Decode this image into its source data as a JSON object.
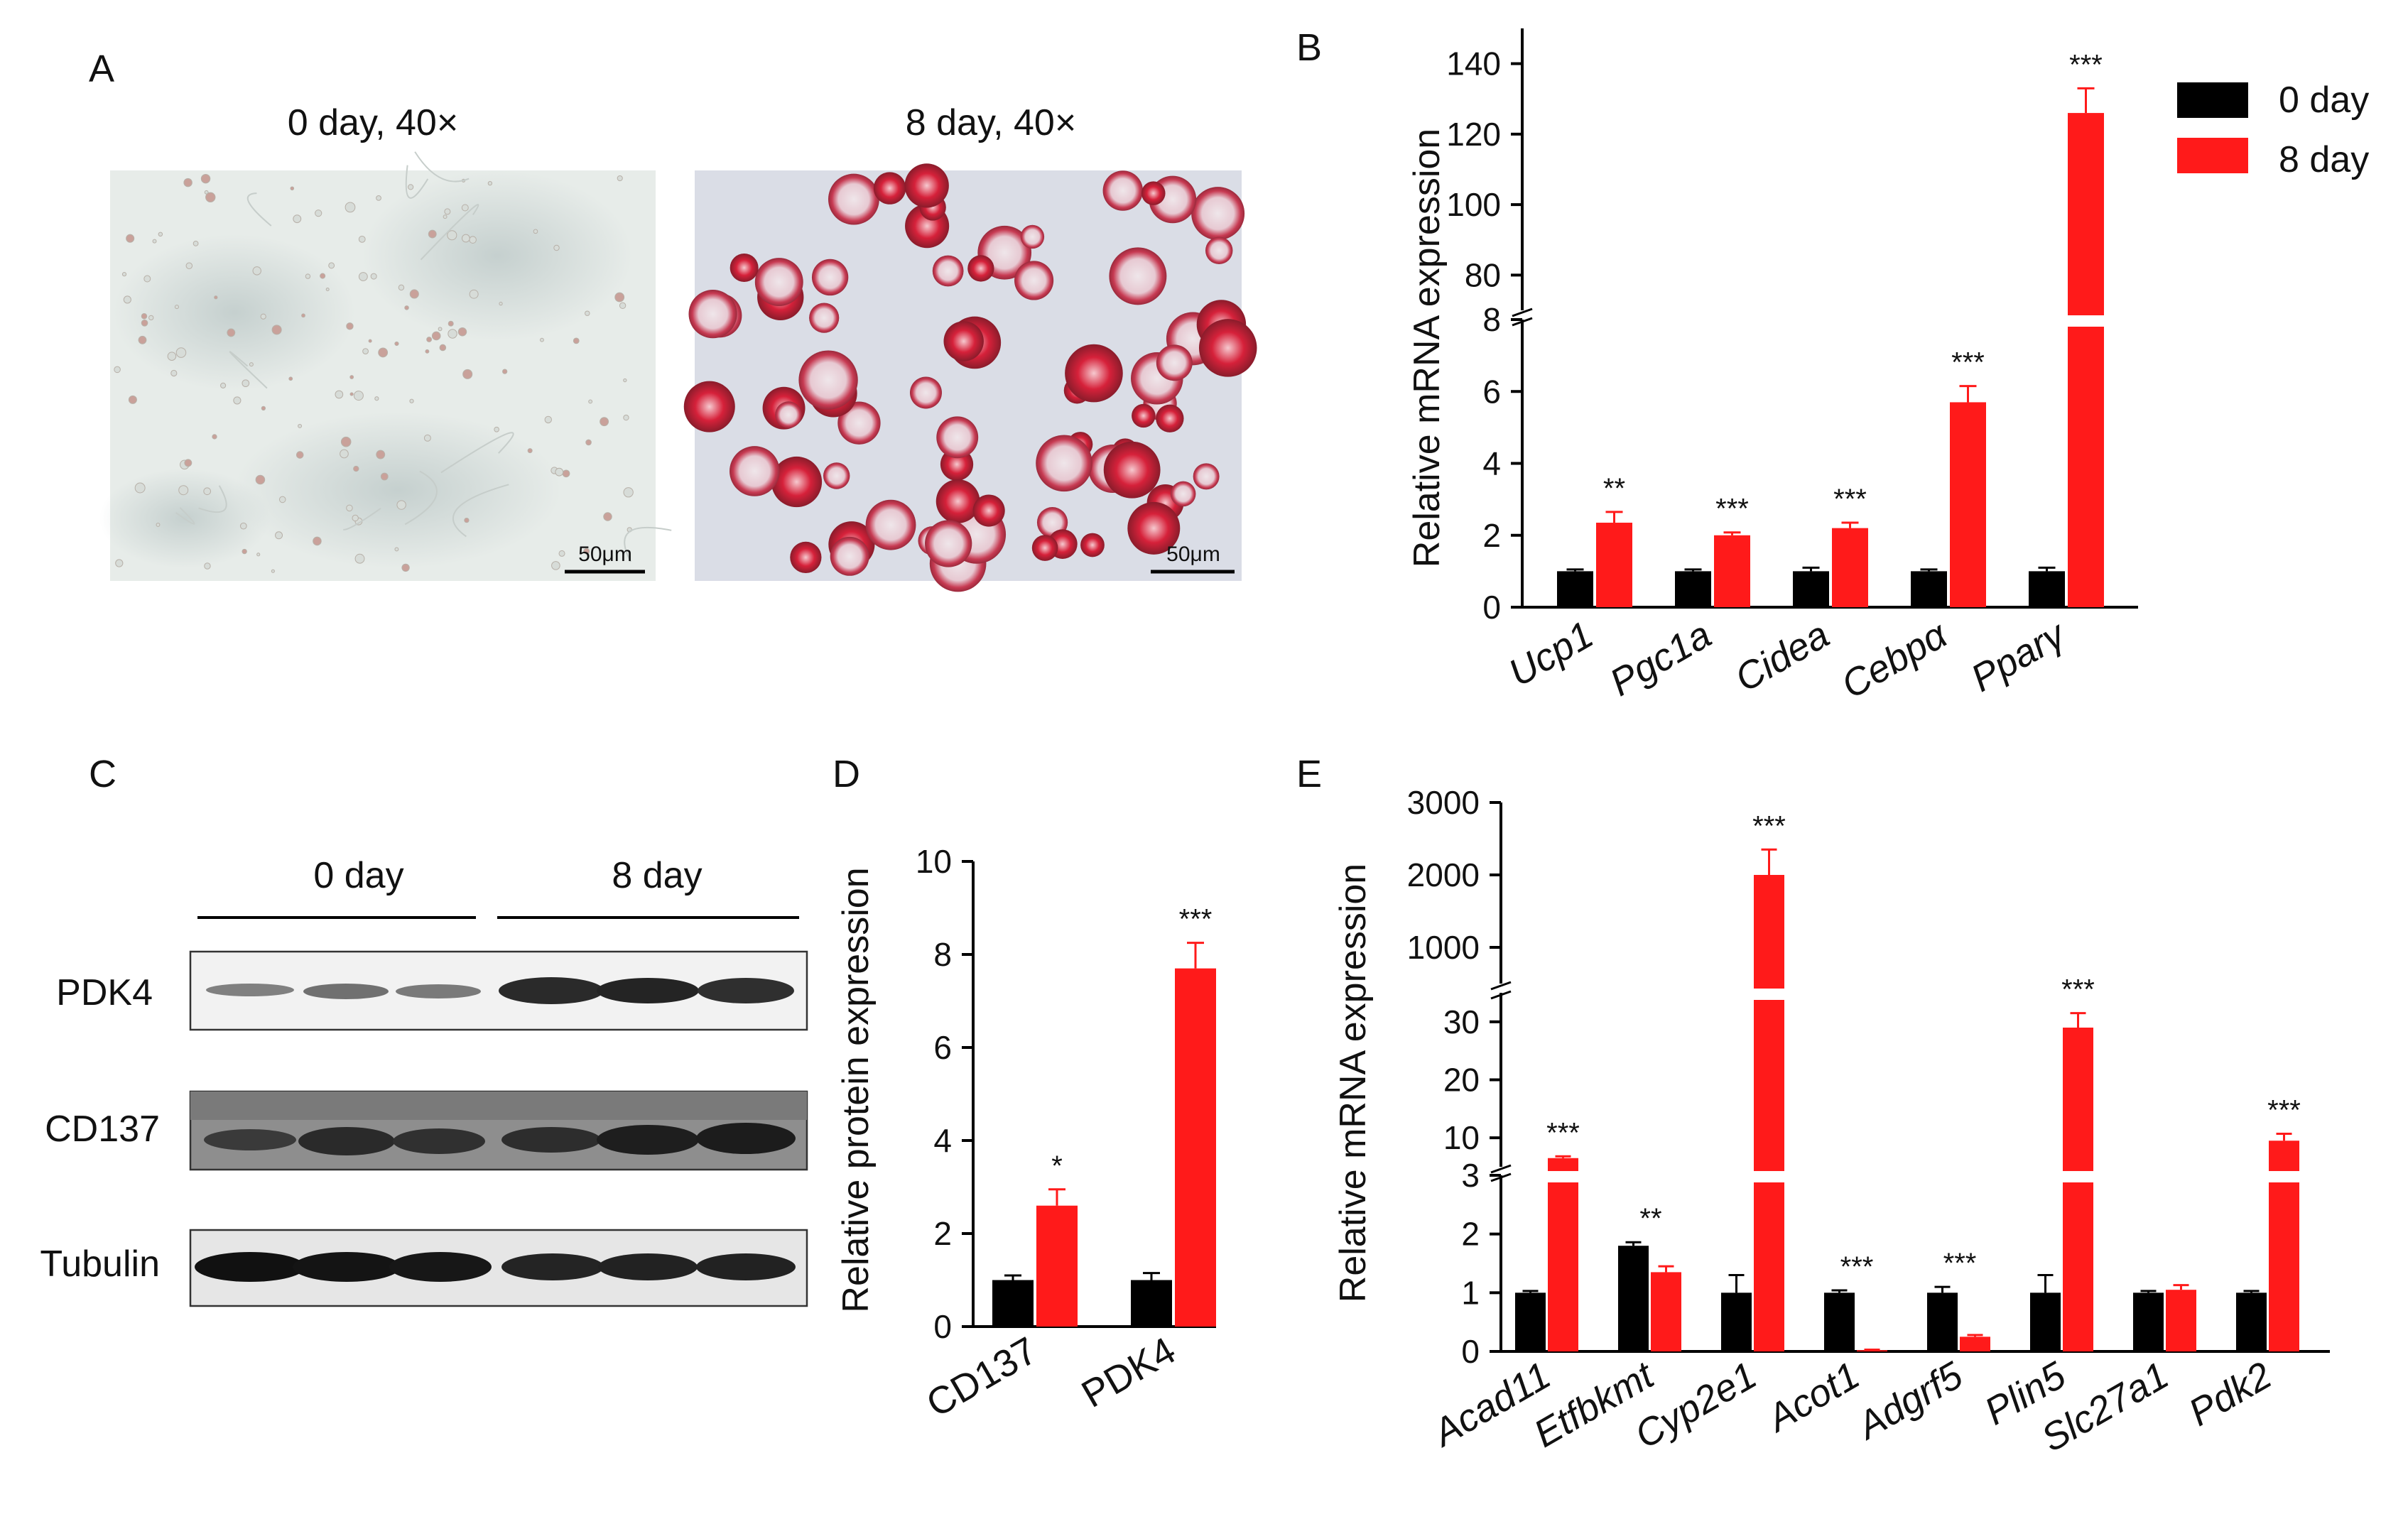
{
  "colors": {
    "day0": "#000000",
    "day8": "#ff1a1a"
  },
  "panel_labels": [
    "A",
    "B",
    "C",
    "D",
    "E"
  ],
  "panelA": {
    "images": [
      {
        "title": "0 day, 40×",
        "scale": "50μm"
      },
      {
        "title": "8 day, 40×",
        "scale": "50μm"
      }
    ]
  },
  "panelC": {
    "groups": [
      "0 day",
      "8 day"
    ],
    "bands": [
      "PDK4",
      "CD137",
      "Tubulin"
    ]
  },
  "chart_data": [
    {
      "panel": "B",
      "type": "bar",
      "ylabel": "Relative mRNA expression",
      "categories": [
        "Ucp1",
        "Pgc1a",
        "Cidea",
        "Cebpα",
        "Pparγ"
      ],
      "series": [
        {
          "name": "0 day",
          "values": [
            1.0,
            1.0,
            1.0,
            1.0,
            1.0
          ],
          "errors": [
            0.05,
            0.05,
            0.1,
            0.05,
            0.1
          ]
        },
        {
          "name": "8 day",
          "values": [
            2.35,
            2.0,
            2.2,
            5.7,
            126
          ],
          "errors": [
            0.3,
            0.08,
            0.15,
            0.45,
            7
          ]
        }
      ],
      "significance": [
        "**",
        "***",
        "***",
        "***",
        "***"
      ],
      "y_ticks": [
        "0",
        "2",
        "4",
        "6",
        "8",
        "80",
        "100",
        "120",
        "140"
      ],
      "axis_break": {
        "lower": [
          0,
          8
        ],
        "upper": [
          70,
          150
        ]
      },
      "legend": {
        "position": "top-right",
        "entries": [
          "0 day",
          "8 day"
        ]
      }
    },
    {
      "panel": "D",
      "type": "bar",
      "ylabel": "Relative protein expression",
      "categories": [
        "CD137",
        "PDK4"
      ],
      "series": [
        {
          "name": "0 day",
          "values": [
            1.0,
            1.0
          ],
          "errors": [
            0.1,
            0.15
          ]
        },
        {
          "name": "8 day",
          "values": [
            2.6,
            7.7
          ],
          "errors": [
            0.35,
            0.55
          ]
        }
      ],
      "significance": [
        "*",
        "***"
      ],
      "y_ticks": [
        "0",
        "2",
        "4",
        "6",
        "8",
        "10"
      ],
      "ylim": [
        0,
        10
      ]
    },
    {
      "panel": "E",
      "type": "bar",
      "ylabel": "Relative mRNA expression",
      "categories": [
        "Acad11",
        "Etfbkmt",
        "Cyp2e1",
        "Acot1",
        "Adgrf5",
        "Plin5",
        "Slc27a1",
        "Pdk2"
      ],
      "series": [
        {
          "name": "0 day",
          "values": [
            1.0,
            1.8,
            1.0,
            1.0,
            1.0,
            1.0,
            1.0,
            1.0
          ],
          "errors": [
            0.03,
            0.06,
            0.3,
            0.04,
            0.1,
            0.3,
            0.03,
            0.03
          ]
        },
        {
          "name": "8 day",
          "values": [
            6.5,
            1.35,
            2000,
            0.02,
            0.25,
            29,
            1.05,
            9.5
          ],
          "errors": [
            0.3,
            0.1,
            350,
            0.01,
            0.03,
            2.5,
            0.08,
            1.2
          ]
        }
      ],
      "significance": [
        "***",
        "**",
        "***",
        "***",
        "***",
        "***",
        "",
        "***"
      ],
      "y_ticks": [
        "0",
        "1",
        "2",
        "3",
        "10",
        "20",
        "30",
        "1000",
        "2000",
        "3000"
      ],
      "axis_breaks": [
        [
          3,
          5
        ],
        [
          35,
          500
        ]
      ]
    }
  ]
}
